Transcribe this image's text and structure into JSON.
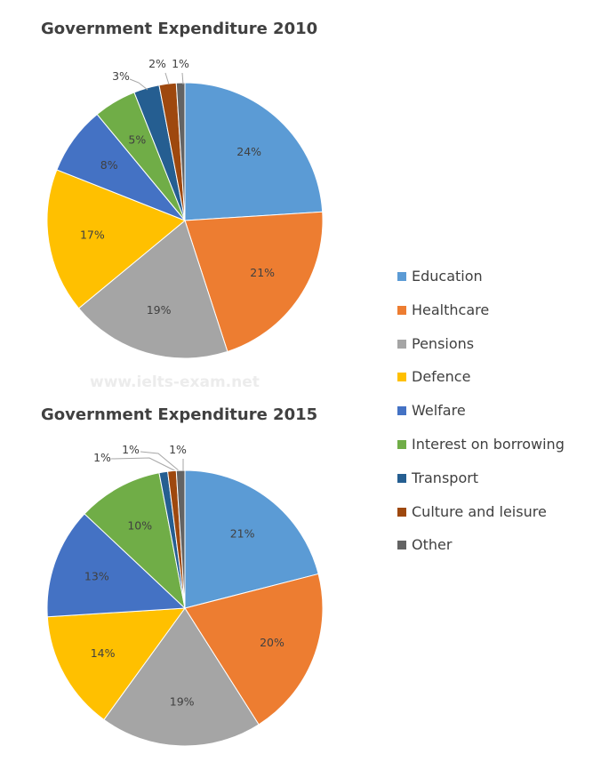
{
  "watermark": "www.ielts-exam.net",
  "legend": [
    {
      "label": "Education",
      "color": "#5B9BD5"
    },
    {
      "label": "Healthcare",
      "color": "#ED7D31"
    },
    {
      "label": "Pensions",
      "color": "#A5A5A5"
    },
    {
      "label": "Defence",
      "color": "#FFC000"
    },
    {
      "label": "Welfare",
      "color": "#4472C4"
    },
    {
      "label": "Interest on borrowing",
      "color": "#70AD47"
    },
    {
      "label": "Transport",
      "color": "#255E91"
    },
    {
      "label": "Culture and leisure",
      "color": "#9E480E"
    },
    {
      "label": "Other",
      "color": "#636363"
    }
  ],
  "chart_data": [
    {
      "type": "pie",
      "title": "Government Expenditure 2010",
      "categories": [
        "Education",
        "Healthcare",
        "Pensions",
        "Defence",
        "Welfare",
        "Interest on borrowing",
        "Transport",
        "Culture and leisure",
        "Other"
      ],
      "values": [
        24,
        21,
        19,
        17,
        8,
        5,
        3,
        2,
        1
      ],
      "data_labels": [
        "24%",
        "21%",
        "19%",
        "17%",
        "8%",
        "5%",
        "3%",
        "2%",
        "1%"
      ],
      "colors": [
        "#5B9BD5",
        "#ED7D31",
        "#A5A5A5",
        "#FFC000",
        "#4472C4",
        "#70AD47",
        "#255E91",
        "#9E480E",
        "#636363"
      ]
    },
    {
      "type": "pie",
      "title": "Government Expenditure 2015",
      "categories": [
        "Education",
        "Healthcare",
        "Pensions",
        "Defence",
        "Welfare",
        "Interest on borrowing",
        "Transport",
        "Culture and leisure",
        "Other"
      ],
      "values": [
        21,
        20,
        19,
        14,
        13,
        10,
        1,
        1,
        1
      ],
      "data_labels": [
        "21%",
        "20%",
        "19%",
        "14%",
        "13%",
        "10%",
        "1%",
        "1%",
        "1%"
      ],
      "colors": [
        "#5B9BD5",
        "#ED7D31",
        "#A5A5A5",
        "#FFC000",
        "#4472C4",
        "#70AD47",
        "#255E91",
        "#9E480E",
        "#636363"
      ]
    }
  ]
}
